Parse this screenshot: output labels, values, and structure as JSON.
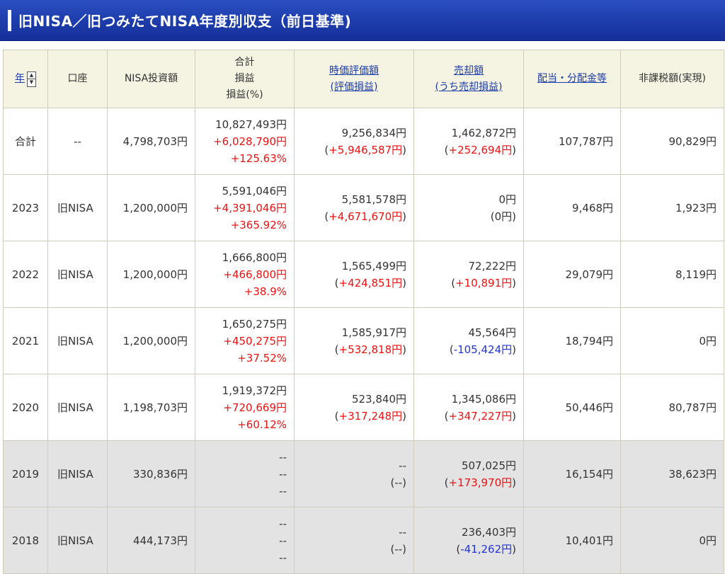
{
  "page": {
    "title": "旧NISA／旧つみたてNISA年度別収支（前日基準)"
  },
  "table": {
    "headers": {
      "year": "年",
      "account": "口座",
      "invest": "NISA投資額",
      "total_l1": "合計",
      "total_l2": "損益",
      "total_l3": "損益(%)",
      "market_l1": "時価評価額",
      "market_l2": "(評価損益)",
      "sell_l1": "売却額",
      "sell_l2": "(うち売却損益)",
      "dividend": "配当・分配金等",
      "taxfree": "非課税額(実現)"
    },
    "rows": [
      {
        "year": "合計",
        "account": "--",
        "invest": "4,798,703円",
        "total": "10,827,493円",
        "pl": "+6,028,790円",
        "pct": "+125.63%",
        "market": "9,256,834円",
        "market_pl": "+5,946,587円",
        "sell": "1,462,872円",
        "sell_pl": "+252,694円",
        "dividend": "107,787円",
        "taxfree": "90,829円"
      },
      {
        "year": "2023",
        "account": "旧NISA",
        "invest": "1,200,000円",
        "total": "5,591,046円",
        "pl": "+4,391,046円",
        "pct": "+365.92%",
        "market": "5,581,578円",
        "market_pl": "+4,671,670円",
        "sell": "0円",
        "sell_pl": "0円",
        "dividend": "9,468円",
        "taxfree": "1,923円"
      },
      {
        "year": "2022",
        "account": "旧NISA",
        "invest": "1,200,000円",
        "total": "1,666,800円",
        "pl": "+466,800円",
        "pct": "+38.9%",
        "market": "1,565,499円",
        "market_pl": "+424,851円",
        "sell": "72,222円",
        "sell_pl": "+10,891円",
        "dividend": "29,079円",
        "taxfree": "8,119円"
      },
      {
        "year": "2021",
        "account": "旧NISA",
        "invest": "1,200,000円",
        "total": "1,650,275円",
        "pl": "+450,275円",
        "pct": "+37.52%",
        "market": "1,585,917円",
        "market_pl": "+532,818円",
        "sell": "45,564円",
        "sell_pl": "-105,424円",
        "dividend": "18,794円",
        "taxfree": "0円"
      },
      {
        "year": "2020",
        "account": "旧NISA",
        "invest": "1,198,703円",
        "total": "1,919,372円",
        "pl": "+720,669円",
        "pct": "+60.12%",
        "market": "523,840円",
        "market_pl": "+317,248円",
        "sell": "1,345,086円",
        "sell_pl": "+347,227円",
        "dividend": "50,446円",
        "taxfree": "80,787円"
      },
      {
        "year": "2019",
        "account": "旧NISA",
        "invest": "330,836円",
        "total": "--",
        "pl": "--",
        "pct": "--",
        "market": "--",
        "market_pl": "--",
        "sell": "507,025円",
        "sell_pl": "+173,970円",
        "dividend": "16,154円",
        "taxfree": "38,623円"
      },
      {
        "year": "2018",
        "account": "旧NISA",
        "invest": "444,173円",
        "total": "--",
        "pl": "--",
        "pct": "--",
        "market": "--",
        "market_pl": "--",
        "sell": "236,403円",
        "sell_pl": "-41,262円",
        "dividend": "10,401円",
        "taxfree": "0円"
      }
    ]
  },
  "colors": {
    "header_bg": "#1f3fae",
    "positive": "#ee1111",
    "negative": "#2333d6",
    "link": "#1a3aa8",
    "old_row_bg": "#e3e3e3",
    "thead_bg": "#f5f3e2"
  },
  "icons": {
    "sort": "sort-up-down-icon"
  }
}
